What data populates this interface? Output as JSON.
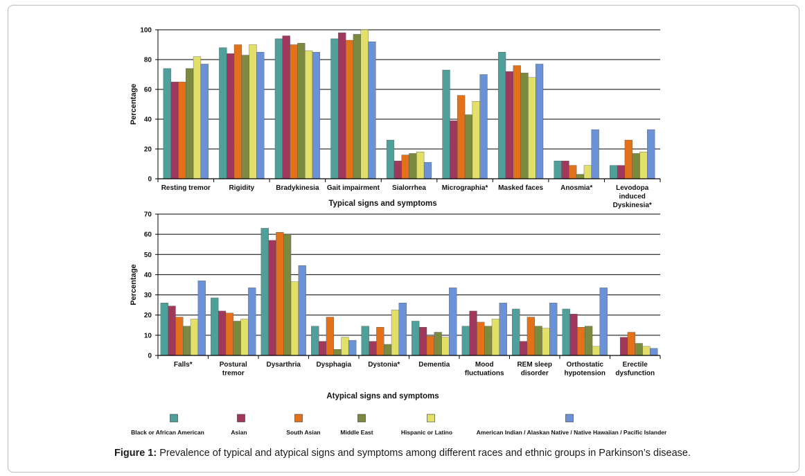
{
  "caption": {
    "label": "Figure 1:",
    "text": "Prevalence of typical and atypical signs and symptoms among different races and ethnic groups in Parkinson’s disease."
  },
  "colors": [
    "#4fa09a",
    "#a0385e",
    "#e37119",
    "#7b8a3e",
    "#e3e06a",
    "#6b92d6"
  ],
  "legend": [
    "Black or African American",
    "Asian",
    "South Asian",
    "Middle East",
    "Hispanic or Latino",
    "American Indian / Alaskan Native / Native Hawaiian / Pacific Islander"
  ],
  "chart_data": [
    {
      "type": "bar",
      "xlabel": "Typical signs and symptoms",
      "ylabel": "Percentage",
      "ylim": [
        0,
        100
      ],
      "yticks": [
        0,
        20,
        40,
        60,
        80,
        100
      ],
      "categories": [
        [
          "Resting tremor"
        ],
        [
          "Rigidity"
        ],
        [
          "Bradykinesia"
        ],
        [
          "Gait impairment"
        ],
        [
          "Sialorrhea"
        ],
        [
          "Micrographia*"
        ],
        [
          "Masked faces"
        ],
        [
          "Anosmia*"
        ],
        [
          "Levodopa",
          "induced",
          "Dyskinesia*"
        ]
      ],
      "series": [
        {
          "name": "Black or African American",
          "values": [
            74,
            88,
            94,
            94,
            26,
            73,
            85,
            12,
            9
          ]
        },
        {
          "name": "Asian",
          "values": [
            65,
            84,
            96,
            98,
            12,
            39,
            72,
            12,
            9
          ]
        },
        {
          "name": "South Asian",
          "values": [
            65,
            90,
            90,
            93,
            16,
            56,
            76,
            9,
            26
          ]
        },
        {
          "name": "Middle East",
          "values": [
            74,
            83,
            91,
            97,
            17,
            43,
            71,
            3,
            17
          ]
        },
        {
          "name": "Hispanic or Latino",
          "values": [
            82,
            90,
            86,
            100,
            18,
            52,
            68,
            9,
            18
          ]
        },
        {
          "name": "American Indian / Alaskan Native / Native Hawaiian / Pacific Islander",
          "values": [
            77,
            85,
            85,
            92,
            11,
            70,
            77,
            33,
            33
          ]
        }
      ]
    },
    {
      "type": "bar",
      "xlabel": "Atypical signs and symptoms",
      "ylabel": "Percentage",
      "ylim": [
        0,
        70
      ],
      "yticks": [
        0,
        10,
        20,
        30,
        40,
        50,
        60,
        70
      ],
      "categories": [
        [
          "Falls*"
        ],
        [
          "Postural",
          "tremor"
        ],
        [
          "Dysarthria"
        ],
        [
          "Dysphagia"
        ],
        [
          "Dystonia*"
        ],
        [
          "Dementia"
        ],
        [
          "Mood",
          "fluctuations"
        ],
        [
          "REM sleep",
          "disorder"
        ],
        [
          "Orthostatic",
          "hypotension"
        ],
        [
          "Erectile",
          "dysfunction"
        ]
      ],
      "series": [
        {
          "name": "Black or African American",
          "values": [
            26,
            28.5,
            63,
            14.5,
            14.5,
            17,
            14.5,
            23,
            23,
            0
          ]
        },
        {
          "name": "Asian",
          "values": [
            24.5,
            22,
            57,
            7,
            7,
            14,
            22,
            7,
            20.5,
            9
          ]
        },
        {
          "name": "South Asian",
          "values": [
            19,
            21,
            61,
            19,
            14,
            9.5,
            16.5,
            19,
            14,
            11.5
          ]
        },
        {
          "name": "Middle East",
          "values": [
            14.5,
            17,
            60,
            3,
            5.5,
            11.5,
            14.5,
            14.5,
            14.5,
            6
          ]
        },
        {
          "name": "Hispanic or Latino",
          "values": [
            18,
            18,
            36.5,
            9,
            22.5,
            9,
            18,
            13.5,
            4.5,
            4.5
          ]
        },
        {
          "name": "American Indian / Alaskan Native / Native Hawaiian / Pacific Islander",
          "values": [
            37,
            33.5,
            44.5,
            7.5,
            26,
            33.5,
            26,
            26,
            33.5,
            3.5
          ]
        }
      ]
    }
  ]
}
